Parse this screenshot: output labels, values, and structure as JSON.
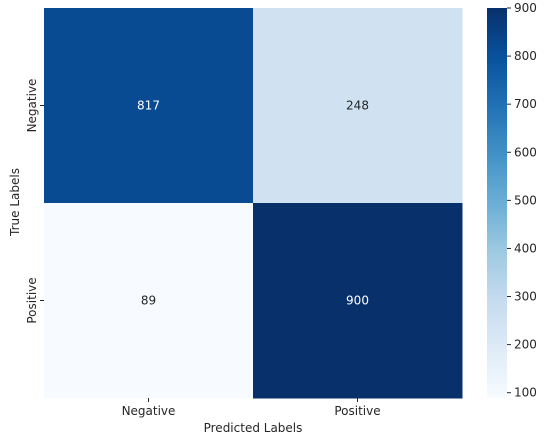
{
  "chart_data": {
    "type": "heatmap",
    "title": "",
    "xlabel": "Predicted Labels",
    "ylabel": "True Labels",
    "x_categories": [
      "Negative",
      "Positive"
    ],
    "y_categories": [
      "Negative",
      "Positive"
    ],
    "values": [
      [
        817,
        248
      ],
      [
        89,
        900
      ]
    ],
    "colormap": "Blues",
    "colorbar": {
      "min": 89,
      "max": 900,
      "ticks": [
        100,
        200,
        300,
        400,
        500,
        600,
        700,
        800,
        900
      ]
    },
    "colors": {
      "low": "#f7fbff",
      "high": "#08306b",
      "text_dark": "#262626",
      "text_light": "#ffffff"
    }
  }
}
